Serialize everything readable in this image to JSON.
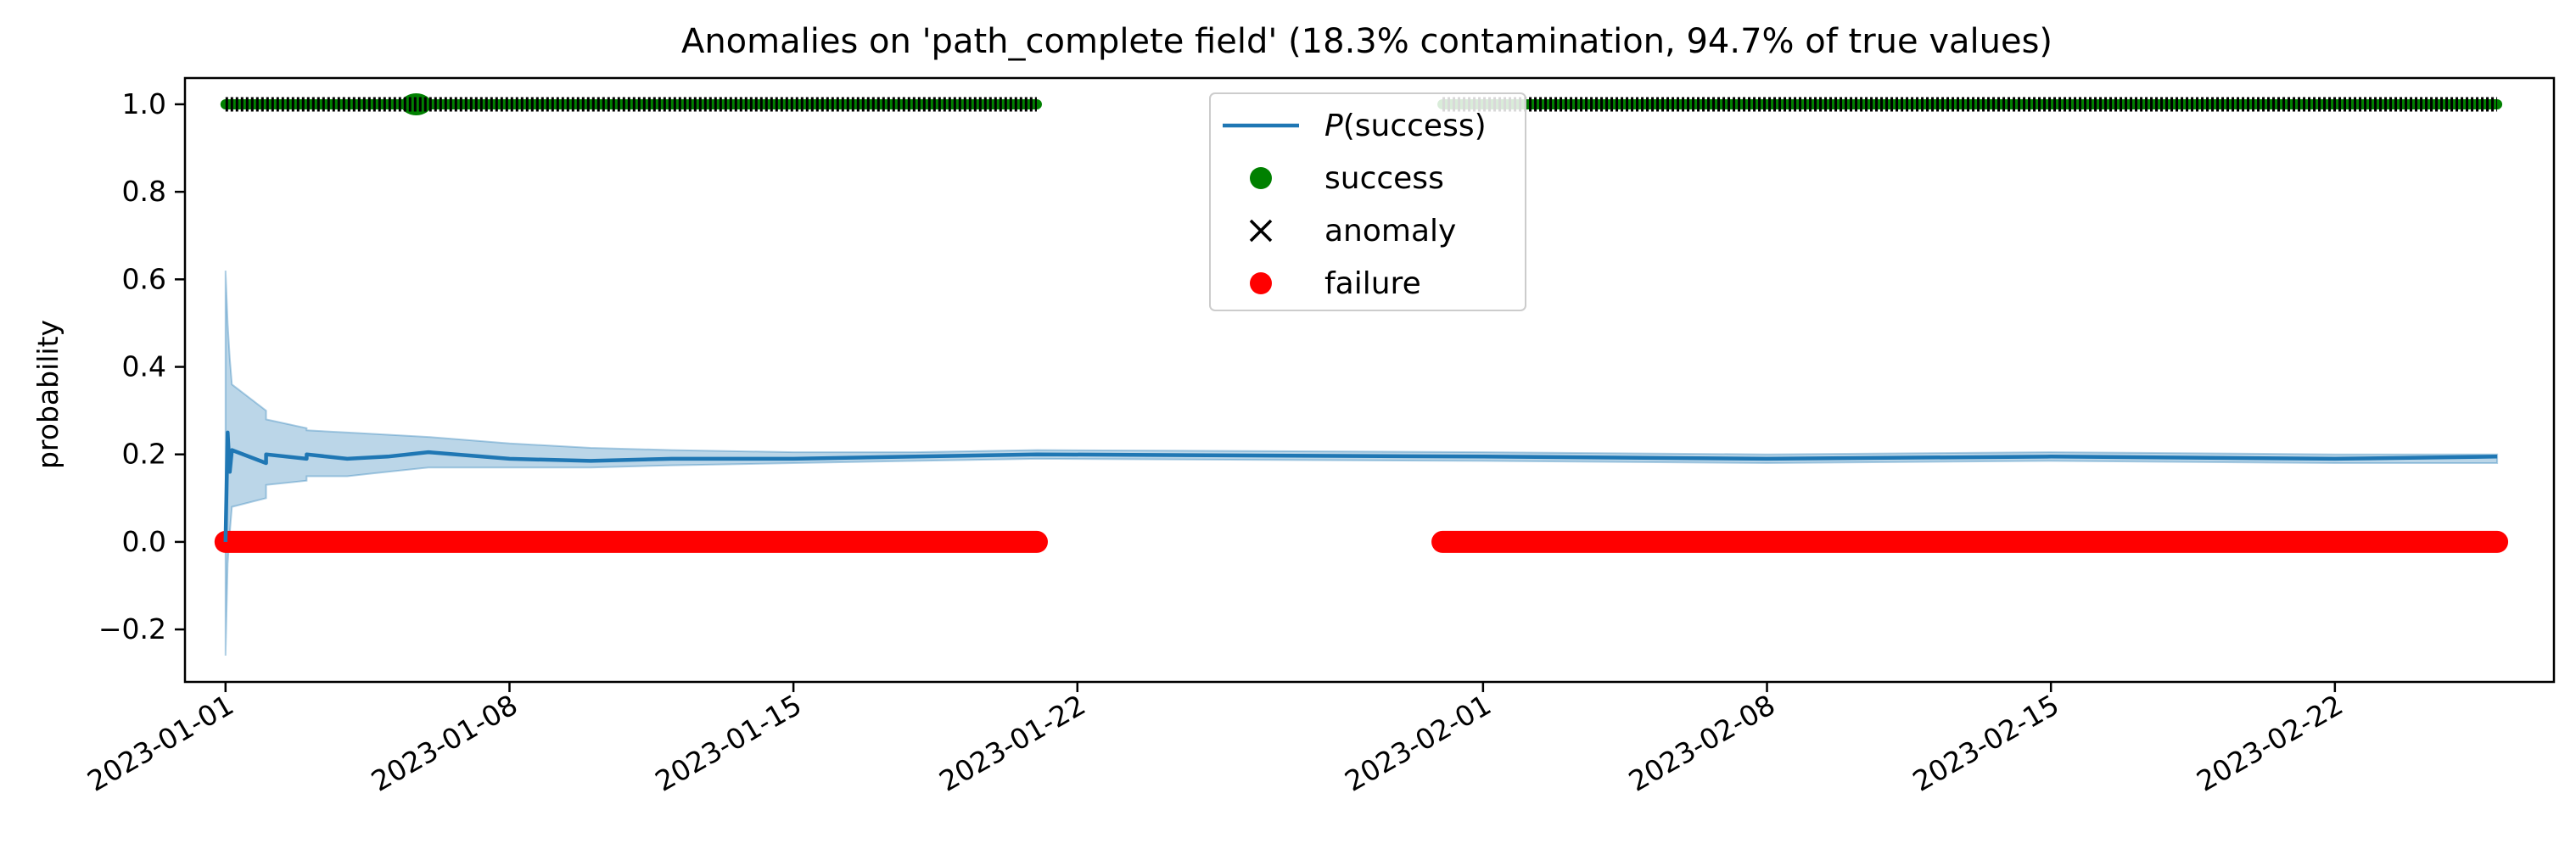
{
  "chart_data": {
    "type": "line",
    "title": "Anomalies on 'path_complete field' (18.3% contamination, 94.7% of true values)",
    "xlabel": "",
    "ylabel": "probability",
    "x_range": [
      "2023-01-01",
      "2023-02-26"
    ],
    "ylim": [
      -0.32,
      1.06
    ],
    "y_ticks": [
      -0.2,
      0.0,
      0.2,
      0.4,
      0.6,
      0.8,
      1.0
    ],
    "y_tick_labels": [
      "−0.2",
      "0.0",
      "0.2",
      "0.4",
      "0.6",
      "0.8",
      "1.0"
    ],
    "x_ticks": [
      "2023-01-01",
      "2023-01-08",
      "2023-01-15",
      "2023-01-22",
      "2023-02-01",
      "2023-02-08",
      "2023-02-15",
      "2023-02-22"
    ],
    "grid": false,
    "legend_position": "top-center",
    "legend": [
      {
        "label_prefix": "P",
        "label_suffix": "(success)",
        "marker": "line",
        "color": "#1f77b4"
      },
      {
        "label": "success",
        "marker": "dot",
        "color": "#008000"
      },
      {
        "label": "anomaly",
        "marker": "x",
        "color": "#000000"
      },
      {
        "label": "failure",
        "marker": "dot",
        "color": "#ff0000"
      }
    ],
    "series": [
      {
        "name": "P(success)",
        "color": "#1f77b4",
        "x": [
          "2023-01-01",
          "2023-01-01",
          "2023-01-01",
          "2023-01-01",
          "2023-01-02",
          "2023-01-02",
          "2023-01-03",
          "2023-01-03",
          "2023-01-04",
          "2023-01-05",
          "2023-01-06",
          "2023-01-08",
          "2023-01-10",
          "2023-01-12",
          "2023-01-15",
          "2023-01-18",
          "2023-01-21",
          "2023-02-01",
          "2023-02-08",
          "2023-02-15",
          "2023-02-22",
          "2023-02-26"
        ],
        "y": [
          0.0,
          0.25,
          0.16,
          0.21,
          0.18,
          0.2,
          0.19,
          0.2,
          0.19,
          0.195,
          0.205,
          0.19,
          0.185,
          0.19,
          0.19,
          0.195,
          0.2,
          0.195,
          0.19,
          0.195,
          0.19,
          0.195
        ],
        "band_lower": [
          -0.26,
          -0.05,
          0.02,
          0.08,
          0.1,
          0.13,
          0.14,
          0.15,
          0.15,
          0.16,
          0.17,
          0.17,
          0.17,
          0.175,
          0.18,
          0.185,
          0.19,
          0.185,
          0.18,
          0.185,
          0.18,
          0.18
        ],
        "band_upper": [
          0.62,
          0.5,
          0.42,
          0.36,
          0.3,
          0.28,
          0.26,
          0.255,
          0.25,
          0.245,
          0.24,
          0.225,
          0.215,
          0.21,
          0.205,
          0.205,
          0.21,
          0.205,
          0.2,
          0.205,
          0.2,
          0.2
        ]
      },
      {
        "name": "failure",
        "color": "#ff0000",
        "y_value": 0.0,
        "segments": [
          [
            "2023-01-01",
            "2023-01-21"
          ],
          [
            "2023-01-31",
            "2023-02-26"
          ]
        ]
      },
      {
        "name": "success",
        "color": "#008000",
        "y_value": 1.0,
        "segments": [
          [
            "2023-01-01",
            "2023-01-21"
          ],
          [
            "2023-01-31",
            "2023-02-26"
          ]
        ],
        "highlight": [
          "2023-01-06",
          "2023-01-06"
        ]
      },
      {
        "name": "anomaly",
        "color": "#000000",
        "y_value": 1.0,
        "segments": [
          [
            "2023-01-01",
            "2023-01-21"
          ],
          [
            "2023-01-31",
            "2023-02-26"
          ]
        ]
      }
    ]
  }
}
